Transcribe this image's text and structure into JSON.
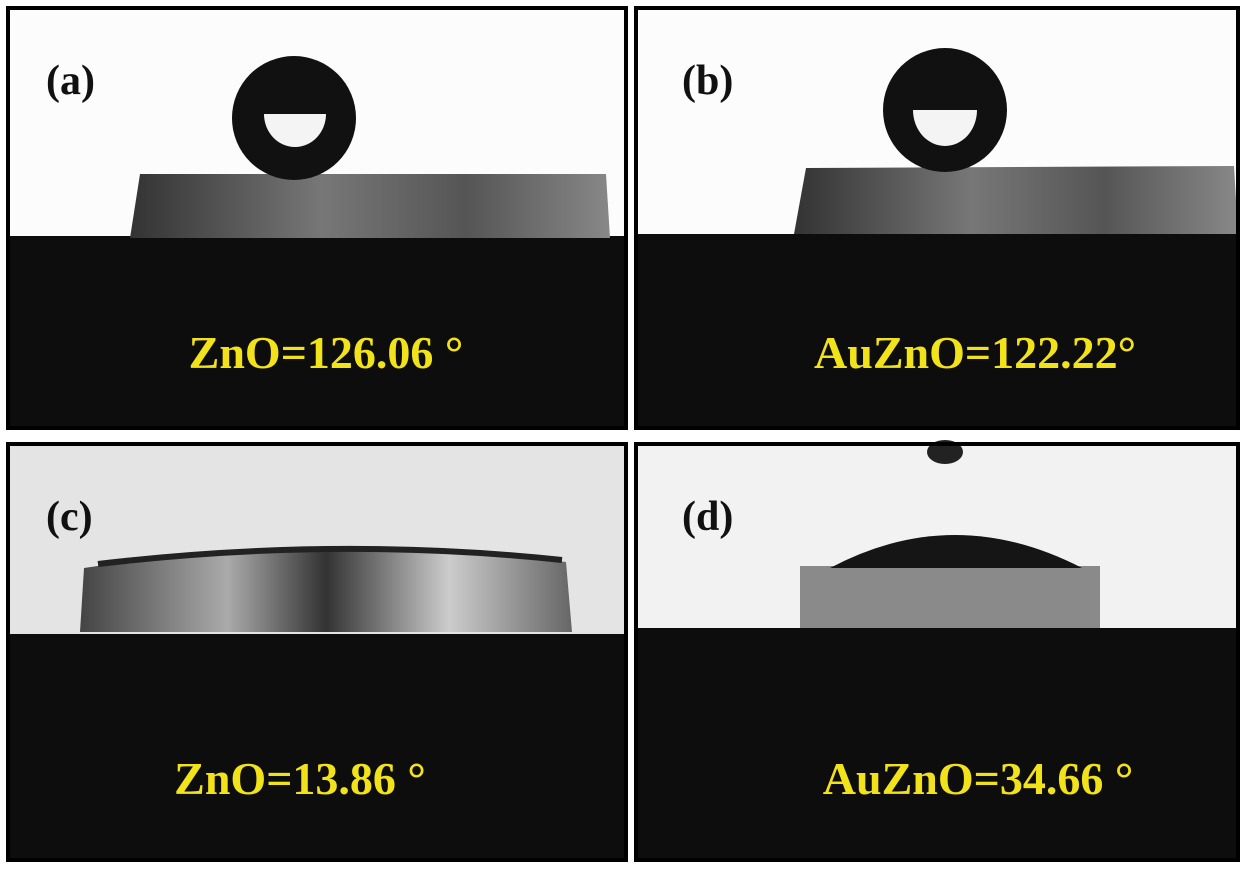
{
  "panels": [
    {
      "label": "(a)",
      "annotation": "ZnO=126.06 °"
    },
    {
      "label": "(b)",
      "annotation": "AuZnO=122.22°"
    },
    {
      "label": "(c)",
      "annotation": "ZnO=13.86 °"
    },
    {
      "label": "(d)",
      "annotation": "AuZnO=34.66 °"
    }
  ]
}
